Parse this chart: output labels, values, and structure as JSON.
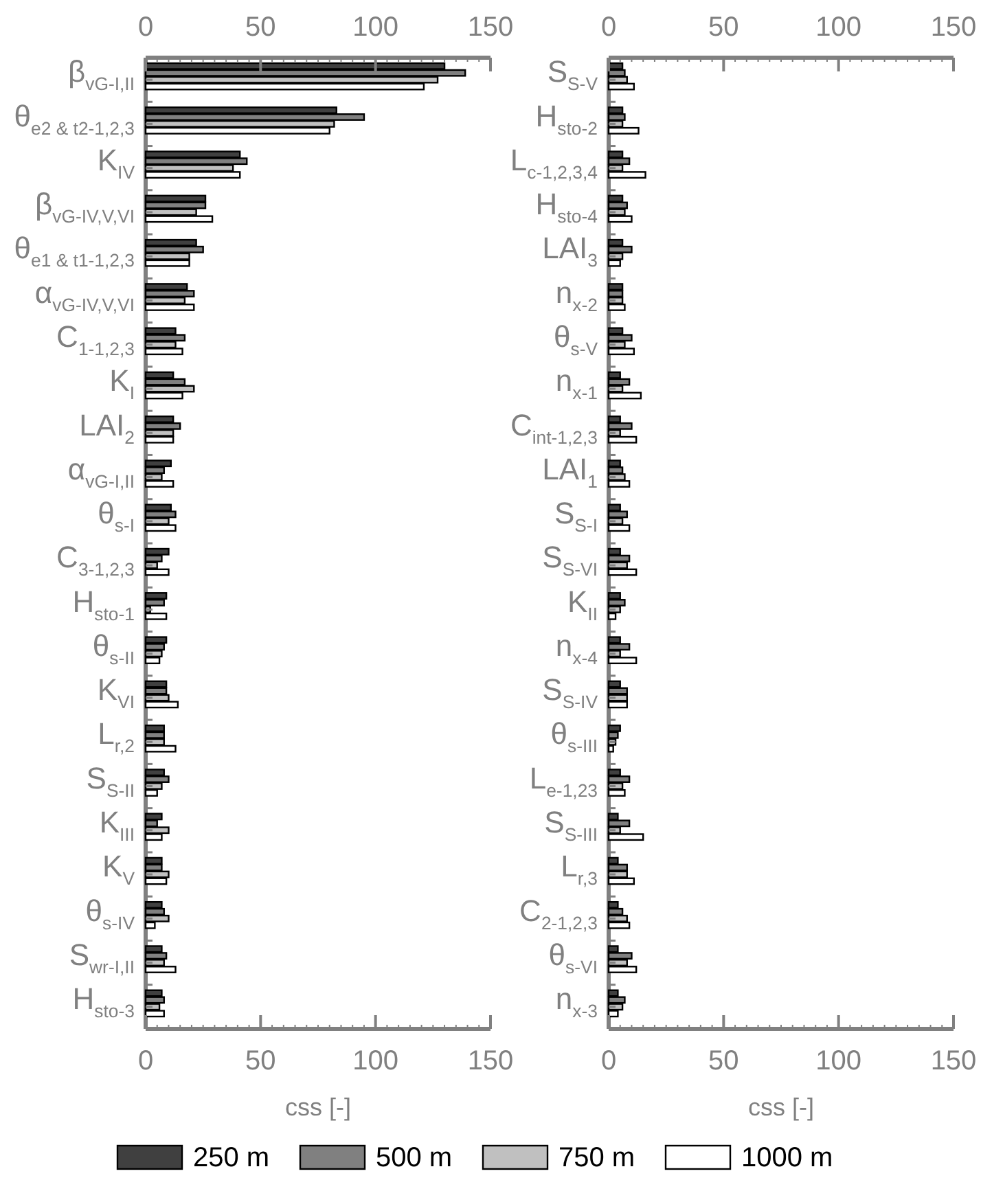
{
  "chart_data": [
    {
      "type": "bar",
      "orientation": "horizontal",
      "xlabel": "css [-]",
      "categories": [
        "β$_{vG-I,II}$",
        "θ$_{e2 & t2-1,2,3}$",
        "K$_{IV}$",
        "β$_{vG-IV,V,VI}$",
        "θ$_{e1 & t1-1,2,3}$",
        "α$_{vG-IV,V,VI}$",
        "C$_{1-1,2,3}$",
        "K$_{I}$",
        "LAI$_{2}$",
        "α$_{vG-I,II}$",
        "θ$_{s-I}$",
        "C$_{3-1,2,3}$",
        "H$_{sto-1}$",
        "θ$_{s-II}$",
        "K$_{VI}$",
        "L$_{r,2}$",
        "S$_{S-II}$",
        "K$_{III}$",
        "K$_{V}$",
        "θ$_{s-IV}$",
        "S$_{wr-I,II}$",
        "H$_{sto-3}$"
      ],
      "series": [
        {
          "name": "250 m",
          "color": "#404040",
          "values": [
            130,
            83,
            41,
            26,
            22,
            18,
            13,
            12,
            12,
            11,
            11,
            10,
            9,
            9,
            9,
            8,
            8,
            7,
            7,
            7,
            7,
            7
          ]
        },
        {
          "name": "500 m",
          "color": "#808080",
          "values": [
            139,
            95,
            44,
            26,
            25,
            21,
            17,
            17,
            15,
            8,
            13,
            7,
            8,
            8,
            9,
            8,
            10,
            5,
            7,
            8,
            9,
            8
          ]
        },
        {
          "name": "750 m",
          "color": "#c0c0c0",
          "values": [
            127,
            82,
            38,
            22,
            19,
            17,
            13,
            21,
            12,
            7,
            10,
            5,
            2,
            7,
            10,
            8,
            7,
            10,
            10,
            10,
            8,
            6
          ]
        },
        {
          "name": "1000 m",
          "color": "#ffffff",
          "values": [
            121,
            80,
            41,
            29,
            19,
            21,
            16,
            16,
            12,
            12,
            13,
            10,
            9,
            6,
            14,
            13,
            5,
            7,
            9,
            4,
            13,
            8
          ]
        }
      ],
      "xlim": [
        0,
        150
      ],
      "xticks": [
        0,
        50,
        100,
        150
      ],
      "x2lim": [
        0,
        150
      ],
      "x2ticks": [
        0,
        50,
        100,
        150
      ],
      "grid": false,
      "legend": "bottom"
    },
    {
      "type": "bar",
      "orientation": "horizontal",
      "xlabel": "css [-]",
      "categories": [
        "S$_{S-V}$",
        "H$_{sto-2}$",
        "L$_{c-1,2,3,4}$",
        "H$_{sto-4}$",
        "LAI$_{3}$",
        "n$_{x-2}$",
        "θ$_{s-V}$",
        "n$_{x-1}$",
        "C$_{int-1,2,3}$",
        "LAI$_{1}$",
        "S$_{S-I}$",
        "S$_{S-VI}$",
        "K$_{II}$",
        "n$_{x-4}$",
        "S$_{S-IV}$",
        "θ$_{s-III}$",
        "L$_{e-1,23}$",
        "S$_{S-III}$",
        "L$_{r,3}$",
        "C$_{2-1,2,3}$",
        "θ$_{s-VI}$",
        "n$_{x-3}$"
      ],
      "series": [
        {
          "color": "#404040",
          "values": [
            6,
            6,
            6,
            6,
            6,
            6,
            6,
            5,
            5,
            5,
            5,
            5,
            5,
            5,
            5,
            5,
            5,
            4,
            4,
            4,
            4,
            4
          ]
        },
        {
          "color": "#808080",
          "values": [
            7,
            7,
            9,
            8,
            10,
            6,
            10,
            9,
            10,
            6,
            8,
            9,
            7,
            9,
            8,
            4,
            9,
            9,
            8,
            6,
            10,
            7
          ]
        },
        {
          "color": "#c0c0c0",
          "values": [
            8,
            6,
            6,
            7,
            6,
            6,
            7,
            6,
            5,
            7,
            6,
            8,
            5,
            5,
            8,
            3,
            6,
            5,
            8,
            8,
            8,
            6
          ]
        },
        {
          "color": "#ffffff",
          "values": [
            11,
            13,
            16,
            10,
            5,
            7,
            11,
            14,
            12,
            9,
            9,
            12,
            3,
            12,
            8,
            2,
            7,
            15,
            11,
            9,
            12,
            4
          ]
        }
      ],
      "xlim": [
        0,
        150
      ],
      "xticks": [
        0,
        50,
        100,
        150
      ],
      "x2lim": [
        0,
        150
      ],
      "x2ticks": [
        0,
        50,
        100,
        150
      ],
      "grid": false
    }
  ]
}
